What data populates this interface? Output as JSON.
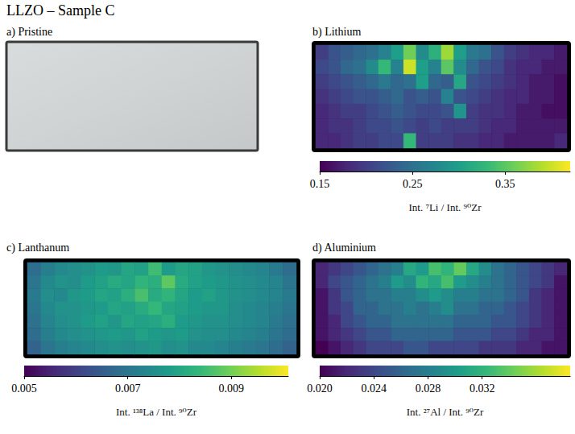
{
  "title": "LLZO – Sample C",
  "chart_data": [
    {
      "type": "image",
      "title": "a) Pristine"
    },
    {
      "type": "heatmap",
      "title": "b) Lithium",
      "tick_labels": false,
      "cells": [
        [
          0.2,
          0.22,
          0.23,
          0.24,
          0.25,
          0.27,
          0.3,
          0.36,
          0.28,
          0.32,
          0.38,
          0.3,
          0.26,
          0.25,
          0.22,
          0.2,
          0.19,
          0.18,
          0.18,
          0.17
        ],
        [
          0.21,
          0.22,
          0.24,
          0.25,
          0.28,
          0.33,
          0.27,
          0.4,
          0.3,
          0.27,
          0.35,
          0.28,
          0.24,
          0.22,
          0.21,
          0.19,
          0.18,
          0.18,
          0.17,
          0.17
        ],
        [
          0.2,
          0.21,
          0.22,
          0.23,
          0.24,
          0.26,
          0.24,
          0.25,
          0.3,
          0.24,
          0.23,
          0.31,
          0.22,
          0.21,
          0.2,
          0.19,
          0.18,
          0.17,
          0.17,
          0.16
        ],
        [
          0.19,
          0.2,
          0.21,
          0.22,
          0.22,
          0.23,
          0.24,
          0.22,
          0.23,
          0.22,
          0.27,
          0.22,
          0.21,
          0.2,
          0.19,
          0.18,
          0.18,
          0.17,
          0.17,
          0.16
        ],
        [
          0.18,
          0.19,
          0.2,
          0.2,
          0.21,
          0.22,
          0.23,
          0.22,
          0.21,
          0.21,
          0.22,
          0.29,
          0.2,
          0.19,
          0.19,
          0.18,
          0.17,
          0.17,
          0.16,
          0.16
        ],
        [
          0.18,
          0.19,
          0.19,
          0.2,
          0.21,
          0.21,
          0.22,
          0.21,
          0.2,
          0.21,
          0.2,
          0.2,
          0.2,
          0.19,
          0.18,
          0.18,
          0.17,
          0.17,
          0.17,
          0.17
        ],
        [
          0.18,
          0.18,
          0.19,
          0.2,
          0.2,
          0.21,
          0.21,
          0.33,
          0.2,
          0.2,
          0.2,
          0.19,
          0.19,
          0.18,
          0.18,
          0.17,
          0.17,
          0.17,
          0.17,
          0.18
        ]
      ],
      "colorbar": {
        "range": [
          0.15,
          0.42
        ],
        "ticks": [
          0.15,
          0.25,
          0.35
        ],
        "label": "Int. ⁷Li / Int. ⁹⁰Zr"
      }
    },
    {
      "type": "heatmap",
      "title": "c) Lanthanum",
      "tick_labels": false,
      "cells": [
        [
          0.0068,
          0.0072,
          0.0074,
          0.0075,
          0.0076,
          0.0078,
          0.0077,
          0.008,
          0.0079,
          0.0085,
          0.0078,
          0.008,
          0.0079,
          0.0077,
          0.0076,
          0.0075,
          0.0074,
          0.0073,
          0.0071,
          0.0068
        ],
        [
          0.007,
          0.0074,
          0.0076,
          0.0075,
          0.0078,
          0.0079,
          0.0081,
          0.008,
          0.0083,
          0.0082,
          0.0088,
          0.0081,
          0.0079,
          0.0078,
          0.0077,
          0.0076,
          0.0075,
          0.0074,
          0.0073,
          0.007
        ],
        [
          0.0071,
          0.0075,
          0.0074,
          0.0077,
          0.0078,
          0.008,
          0.0079,
          0.0082,
          0.0086,
          0.0081,
          0.0083,
          0.008,
          0.0078,
          0.0079,
          0.0077,
          0.0076,
          0.0075,
          0.0074,
          0.0073,
          0.0071
        ],
        [
          0.007,
          0.0074,
          0.0076,
          0.0076,
          0.0077,
          0.0078,
          0.008,
          0.0079,
          0.0081,
          0.0084,
          0.008,
          0.0079,
          0.0078,
          0.0077,
          0.0077,
          0.0075,
          0.0074,
          0.0073,
          0.0072,
          0.007
        ],
        [
          0.0069,
          0.0073,
          0.0075,
          0.0076,
          0.0078,
          0.0079,
          0.0077,
          0.008,
          0.0079,
          0.008,
          0.0082,
          0.0078,
          0.0077,
          0.0076,
          0.0076,
          0.0075,
          0.0074,
          0.0073,
          0.0071,
          0.0069
        ],
        [
          0.0068,
          0.0072,
          0.0074,
          0.0075,
          0.0076,
          0.0077,
          0.0078,
          0.0077,
          0.0079,
          0.0078,
          0.0077,
          0.0078,
          0.0076,
          0.0075,
          0.0075,
          0.0074,
          0.0073,
          0.0072,
          0.007,
          0.0068
        ],
        [
          0.0066,
          0.007,
          0.0072,
          0.0073,
          0.0074,
          0.0075,
          0.0076,
          0.0075,
          0.0076,
          0.0077,
          0.0075,
          0.0076,
          0.0074,
          0.0074,
          0.0073,
          0.0072,
          0.0071,
          0.007,
          0.0068,
          0.0066
        ]
      ],
      "colorbar": {
        "range": [
          0.005,
          0.0101
        ],
        "ticks": [
          0.005,
          0.007,
          0.009
        ],
        "label": "Int. ¹³⁸La / Int. ⁹⁰Zr"
      }
    },
    {
      "type": "heatmap",
      "title": "d) Aluminium",
      "tick_labels": false,
      "cells": [
        [
          0.022,
          0.023,
          0.024,
          0.025,
          0.026,
          0.027,
          0.028,
          0.031,
          0.03,
          0.033,
          0.032,
          0.034,
          0.031,
          0.029,
          0.027,
          0.026,
          0.025,
          0.024,
          0.023,
          0.022
        ],
        [
          0.022,
          0.024,
          0.025,
          0.026,
          0.027,
          0.028,
          0.03,
          0.029,
          0.032,
          0.031,
          0.033,
          0.03,
          0.029,
          0.028,
          0.027,
          0.026,
          0.025,
          0.024,
          0.023,
          0.021
        ],
        [
          0.021,
          0.023,
          0.025,
          0.026,
          0.027,
          0.027,
          0.028,
          0.028,
          0.029,
          0.03,
          0.029,
          0.028,
          0.028,
          0.027,
          0.027,
          0.026,
          0.025,
          0.023,
          0.022,
          0.021
        ],
        [
          0.021,
          0.023,
          0.024,
          0.026,
          0.026,
          0.027,
          0.027,
          0.028,
          0.027,
          0.028,
          0.029,
          0.027,
          0.027,
          0.026,
          0.026,
          0.025,
          0.024,
          0.023,
          0.022,
          0.021
        ],
        [
          0.021,
          0.022,
          0.024,
          0.025,
          0.026,
          0.026,
          0.027,
          0.027,
          0.027,
          0.027,
          0.027,
          0.026,
          0.026,
          0.026,
          0.025,
          0.025,
          0.024,
          0.023,
          0.022,
          0.021
        ],
        [
          0.021,
          0.022,
          0.023,
          0.024,
          0.025,
          0.025,
          0.026,
          0.026,
          0.026,
          0.026,
          0.026,
          0.025,
          0.025,
          0.025,
          0.024,
          0.024,
          0.023,
          0.022,
          0.022,
          0.021
        ],
        [
          0.02,
          0.021,
          0.022,
          0.023,
          0.024,
          0.024,
          0.024,
          0.025,
          0.025,
          0.024,
          0.024,
          0.024,
          0.024,
          0.023,
          0.023,
          0.023,
          0.022,
          0.022,
          0.021,
          0.021
        ]
      ],
      "colorbar": {
        "range": [
          0.02,
          0.0385
        ],
        "ticks": [
          {
            "value": 0.02,
            "label": "0.020"
          },
          0.024,
          0.028,
          0.032
        ],
        "label": "Int. ²⁷Al / Int. ⁹⁰Zr"
      }
    }
  ]
}
